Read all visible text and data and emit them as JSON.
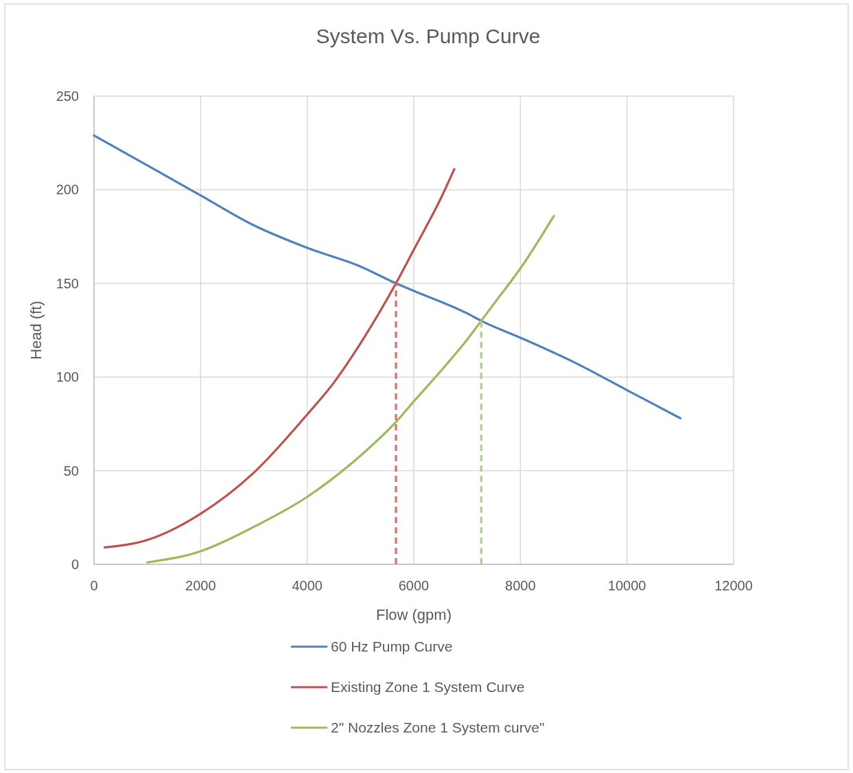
{
  "chart_data": {
    "type": "line",
    "title": "System Vs. Pump Curve",
    "xlabel": "Flow (gpm)",
    "ylabel": "Head (ft)",
    "xlim": [
      0,
      12000
    ],
    "xticks": [
      0,
      2000,
      4000,
      6000,
      8000,
      10000,
      12000
    ],
    "ylim": [
      0,
      250
    ],
    "yticks": [
      0,
      50,
      100,
      150,
      200,
      250
    ],
    "grid": true,
    "legend": "bottom",
    "marker": "none",
    "series": [
      {
        "name": "60 Hz Pump Curve",
        "color": "#4f81bd",
        "x": [
          0,
          1000,
          2000,
          3000,
          4000,
          5000,
          5665,
          6000,
          7000,
          7265,
          8000,
          9000,
          10000,
          11000
        ],
        "values": [
          229,
          213,
          197,
          181,
          169,
          159,
          150,
          146,
          134,
          130,
          121,
          108,
          93,
          78
        ]
      },
      {
        "name": "Existing Zone 1 System Curve",
        "color": "#c0504d",
        "x": [
          200,
          1000,
          2000,
          3000,
          4000,
          4500,
          5000,
          5665,
          6000,
          6500,
          6760
        ],
        "values": [
          9,
          13,
          27,
          49,
          80,
          97,
          118,
          150,
          168,
          195,
          211
        ]
      },
      {
        "name": "2\" Nozzles Zone 1 System curve\"",
        "color": "#9bbb59",
        "x": [
          1000,
          2000,
          3000,
          4000,
          5000,
          5665,
          6000,
          6500,
          7000,
          7265,
          7500,
          8000,
          8628
        ],
        "values": [
          1,
          7,
          20,
          36,
          58,
          76,
          87,
          103,
          120,
          130,
          139,
          158,
          186
        ]
      },
      {
        "color": "#e06c6c",
        "line_style": "dashed",
        "x": [
          5665,
          5665
        ],
        "values": [
          0,
          150
        ]
      },
      {
        "color": "#a9d08e",
        "line_style": "dashed",
        "x": [
          7265,
          7265
        ],
        "values": [
          0,
          130
        ]
      }
    ]
  }
}
